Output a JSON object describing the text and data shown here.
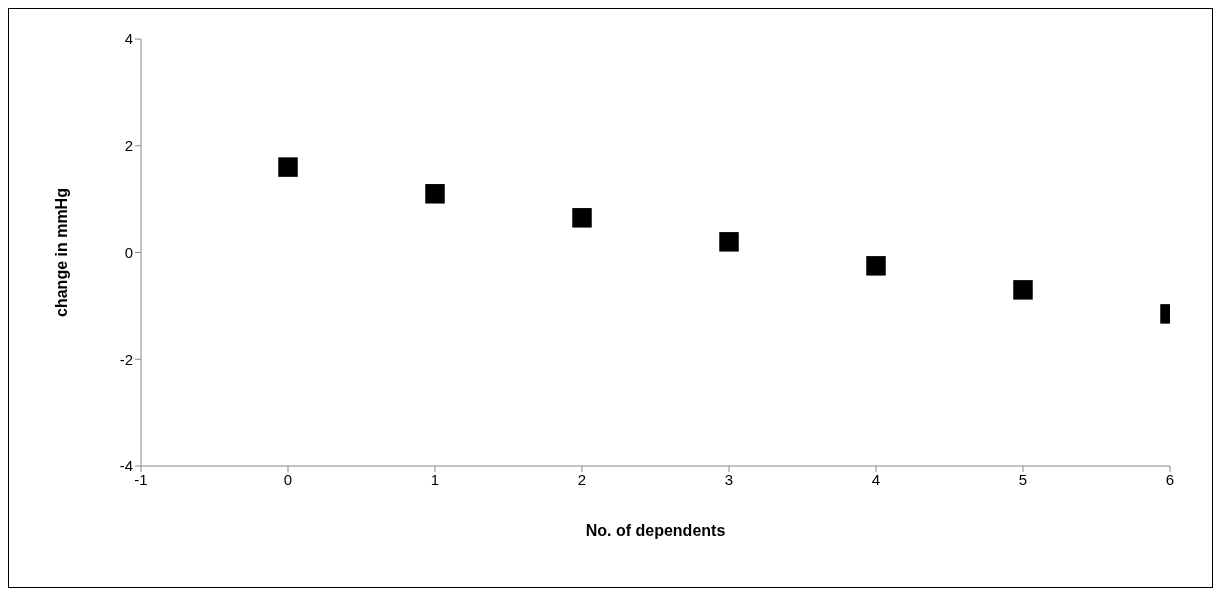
{
  "chart_data": {
    "type": "scatter",
    "xlabel": "No. of dependents",
    "ylabel": "change in mmHg",
    "x": [
      0,
      1,
      2,
      3,
      4,
      5,
      6
    ],
    "series": [
      {
        "color": "#000000",
        "values": [
          1.6,
          1.1,
          0.65,
          0.2,
          -0.25,
          -0.7,
          -1.15
        ]
      }
    ],
    "xlim": [
      -1,
      6
    ],
    "xticks": [
      -1,
      0,
      1,
      2,
      3,
      4,
      5,
      6
    ],
    "ylim": [
      -4,
      4
    ],
    "yticks": [
      -4,
      -2,
      0,
      2,
      4
    ],
    "grid": false,
    "legend": false,
    "marker": "square"
  }
}
